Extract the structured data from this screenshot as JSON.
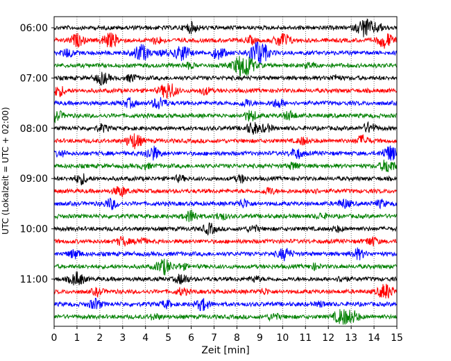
{
  "chart_data": {
    "type": "line",
    "title": "",
    "xlabel": "Zeit  [min]",
    "ylabel": "UTC (Lokalzeit = UTC + 02:00)",
    "xlim": [
      0,
      15
    ],
    "x_ticks": [
      "0",
      "1",
      "2",
      "3",
      "4",
      "5",
      "6",
      "7",
      "8",
      "9",
      "10",
      "11",
      "12",
      "13",
      "14",
      "15"
    ],
    "y_tick_labels": [
      "06:00",
      "07:00",
      "08:00",
      "09:00",
      "10:00",
      "11:00"
    ],
    "y_tick_rows": [
      0,
      4,
      8,
      12,
      16,
      20
    ],
    "row_interval_min": 15,
    "row_count": 24,
    "row_colors": [
      "#000000",
      "#ff0000",
      "#0000ff",
      "#008000"
    ],
    "grid_x": true,
    "events_by_row": [
      [
        [
          6,
          0.6
        ],
        [
          13.6,
          1.1
        ],
        [
          14.2,
          0.4
        ]
      ],
      [
        [
          1,
          0.7
        ],
        [
          2.3,
          0.6
        ],
        [
          2.6,
          0.5
        ],
        [
          10,
          0.9
        ],
        [
          14.5,
          0.9
        ],
        [
          4.5,
          0.4
        ],
        [
          8.6,
          0.4
        ]
      ],
      [
        [
          0.6,
          0.5
        ],
        [
          3.8,
          1.0
        ],
        [
          5.6,
          0.9
        ],
        [
          7.2,
          0.7
        ],
        [
          8.8,
          1.0
        ],
        [
          9.1,
          0.9
        ],
        [
          4.8,
          0.3
        ]
      ],
      [
        [
          8.3,
          1.5
        ],
        [
          5.9,
          0.3
        ],
        [
          11.2,
          0.3
        ]
      ],
      [
        [
          2.1,
          0.7
        ],
        [
          3.4,
          0.4
        ],
        [
          12.3,
          0.3
        ]
      ],
      [
        [
          5,
          1.0
        ],
        [
          0.2,
          0.6
        ],
        [
          6.6,
          0.4
        ]
      ],
      [
        [
          4.6,
          0.7
        ],
        [
          3.3,
          0.5
        ],
        [
          8.4,
          0.4
        ],
        [
          9.8,
          0.5
        ]
      ],
      [
        [
          0.1,
          0.6
        ],
        [
          8.6,
          0.6
        ],
        [
          10.3,
          0.5
        ]
      ],
      [
        [
          2.1,
          0.4
        ],
        [
          8.7,
          0.7
        ],
        [
          9.3,
          0.4
        ],
        [
          13.8,
          0.6
        ]
      ],
      [
        [
          3.5,
          0.9
        ],
        [
          10.9,
          0.4
        ],
        [
          13.5,
          0.6
        ]
      ],
      [
        [
          4.3,
          0.8
        ],
        [
          10.6,
          0.6
        ],
        [
          14.7,
          0.9
        ],
        [
          0.3,
          0.3
        ]
      ],
      [
        [
          14.6,
          0.8
        ],
        [
          10.5,
          0.4
        ],
        [
          4,
          0.3
        ]
      ],
      [
        [
          1.2,
          0.6
        ],
        [
          5.5,
          0.3
        ],
        [
          8.2,
          0.4
        ]
      ],
      [
        [
          2.9,
          0.6
        ],
        [
          9.4,
          0.4
        ],
        [
          11.3,
          0.3
        ]
      ],
      [
        [
          2.5,
          0.6
        ],
        [
          8.3,
          0.5
        ],
        [
          12.7,
          0.5
        ],
        [
          14.3,
          0.4
        ]
      ],
      [
        [
          6,
          0.7
        ],
        [
          7.3,
          0.4
        ],
        [
          11.7,
          0.3
        ]
      ],
      [
        [
          6.8,
          0.6
        ],
        [
          8.7,
          0.4
        ],
        [
          12.4,
          0.3
        ]
      ],
      [
        [
          3,
          0.5
        ],
        [
          3.8,
          0.4
        ],
        [
          13.9,
          0.5
        ]
      ],
      [
        [
          0.9,
          0.5
        ],
        [
          10.1,
          0.7
        ],
        [
          13.3,
          0.6
        ]
      ],
      [
        [
          4.8,
          0.9
        ],
        [
          5.6,
          0.3
        ],
        [
          11.4,
          0.3
        ]
      ],
      [
        [
          1,
          0.8
        ],
        [
          5.6,
          0.6
        ],
        [
          8.8,
          0.3
        ],
        [
          12.6,
          0.3
        ]
      ],
      [
        [
          1.9,
          0.4
        ],
        [
          5.6,
          0.4
        ],
        [
          14.5,
          0.9
        ],
        [
          9.2,
          0.3
        ]
      ],
      [
        [
          1.8,
          0.6
        ],
        [
          6.5,
          0.7
        ],
        [
          4.9,
          0.4
        ],
        [
          11.7,
          0.3
        ]
      ],
      [
        [
          12.6,
          0.9
        ],
        [
          13.1,
          0.6
        ],
        [
          9.6,
          0.4
        ],
        [
          4.4,
          0.3
        ]
      ]
    ]
  }
}
